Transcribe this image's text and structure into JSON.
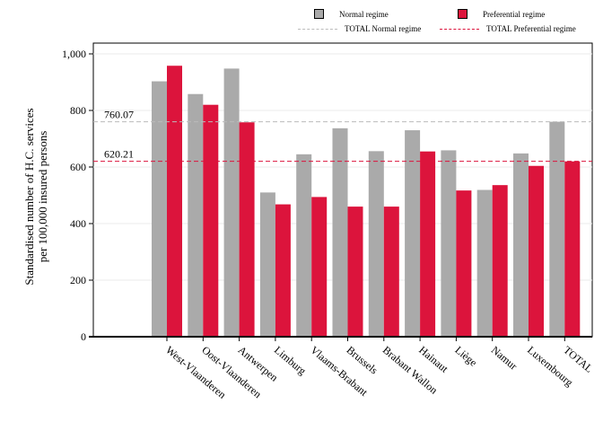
{
  "chart_data": {
    "type": "bar",
    "categories": [
      "West-Vlaanderen",
      "Oost-Vlaanderen",
      "Antwerpen",
      "Limburg",
      "Vlaams-Brabant",
      "Brussels",
      "Brabant Wallon",
      "Hainaut",
      "Liège",
      "Namur",
      "Luxembourg",
      "TOTAL"
    ],
    "series": [
      {
        "name": "Normal regime",
        "color": "#aaaaaa",
        "values": [
          903,
          858,
          948,
          510,
          645,
          737,
          656,
          730,
          659,
          519,
          648,
          760
        ]
      },
      {
        "name": "Preferential regime",
        "color": "#dc143c",
        "values": [
          958,
          820,
          758,
          468,
          494,
          460,
          460,
          655,
          517,
          536,
          604,
          620
        ]
      }
    ],
    "reference_lines": [
      {
        "name": "TOTAL Normal regime",
        "value": 760.07,
        "label": "760.07",
        "color": "#bbbbbb"
      },
      {
        "name": "TOTAL Preferential regime",
        "value": 620.21,
        "label": "620.21",
        "color": "#dc143c"
      }
    ],
    "ylabel": "Standardised number of H.C. services per 100,000 insured persons",
    "ylabel_lines": [
      "Standardised number of H.C. services",
      "per 100,000 insured persons"
    ],
    "xlabel": "",
    "ylim": [
      0,
      1000
    ],
    "yticks": [
      0,
      200,
      400,
      600,
      800,
      1000
    ],
    "ytick_labels": [
      "0",
      "200",
      "400",
      "600",
      "800",
      "1,000"
    ],
    "grid": true,
    "legend_position": "top"
  }
}
